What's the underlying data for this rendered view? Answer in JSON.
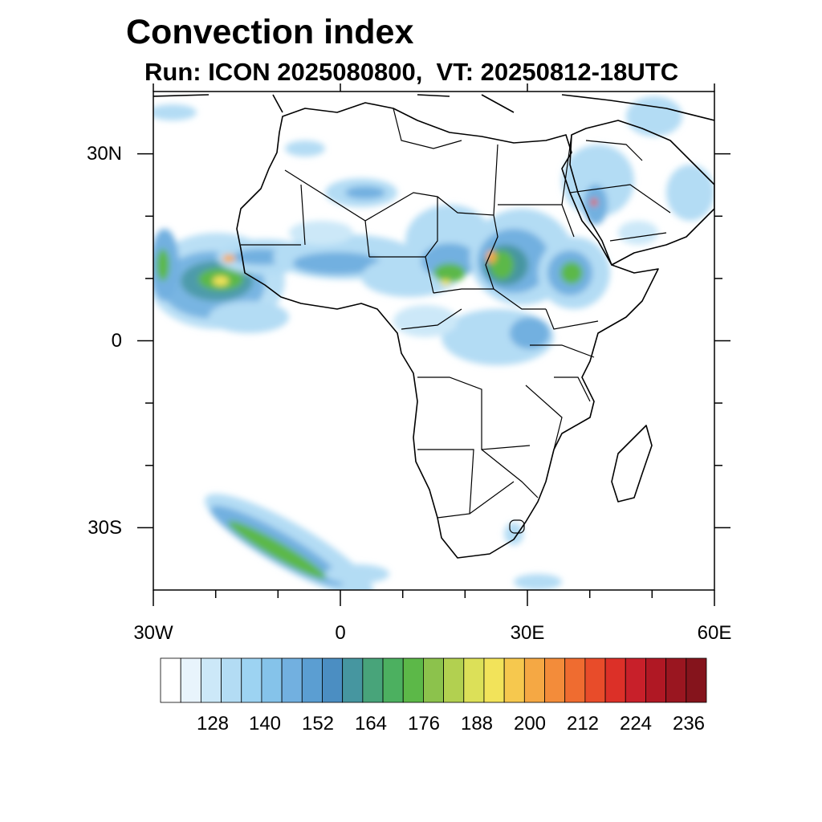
{
  "title": "Convection index",
  "subtitle": "Run: ICON 2025080800,  VT: 20250812-18UTC",
  "axes": {
    "x_labels": [
      "30W",
      "0",
      "30E",
      "60E"
    ],
    "y_labels": [
      "30N",
      "0",
      "30S"
    ],
    "lon_range": [
      -30,
      60
    ],
    "lat_range": [
      -40,
      40
    ]
  },
  "colorbar": {
    "labels": [
      "128",
      "140",
      "152",
      "164",
      "176",
      "188",
      "200",
      "212",
      "224",
      "236"
    ],
    "colors": [
      "#ffffff",
      "#e8f4fc",
      "#cce8f8",
      "#b3dcf4",
      "#9dd3f2",
      "#85c3ea",
      "#72b0e0",
      "#5b9ed2",
      "#4b8ec2",
      "#4696a0",
      "#48a47a",
      "#4cb060",
      "#5cb848",
      "#8cc24c",
      "#b2d050",
      "#dce058",
      "#f2e35a",
      "#f6c84e",
      "#f5a844",
      "#f38c3a",
      "#ef6c30",
      "#e84c2a",
      "#dc3028",
      "#c8202a",
      "#b01824",
      "#9a1620",
      "#85141c"
    ]
  },
  "colors": {
    "light": "#b3dcf4",
    "mid": "#72b0e0",
    "teal": "#4696a0",
    "green": "#4cb060",
    "yellow": "#f2e35a",
    "orange": "#f5a844",
    "red": "#e84c2a"
  }
}
